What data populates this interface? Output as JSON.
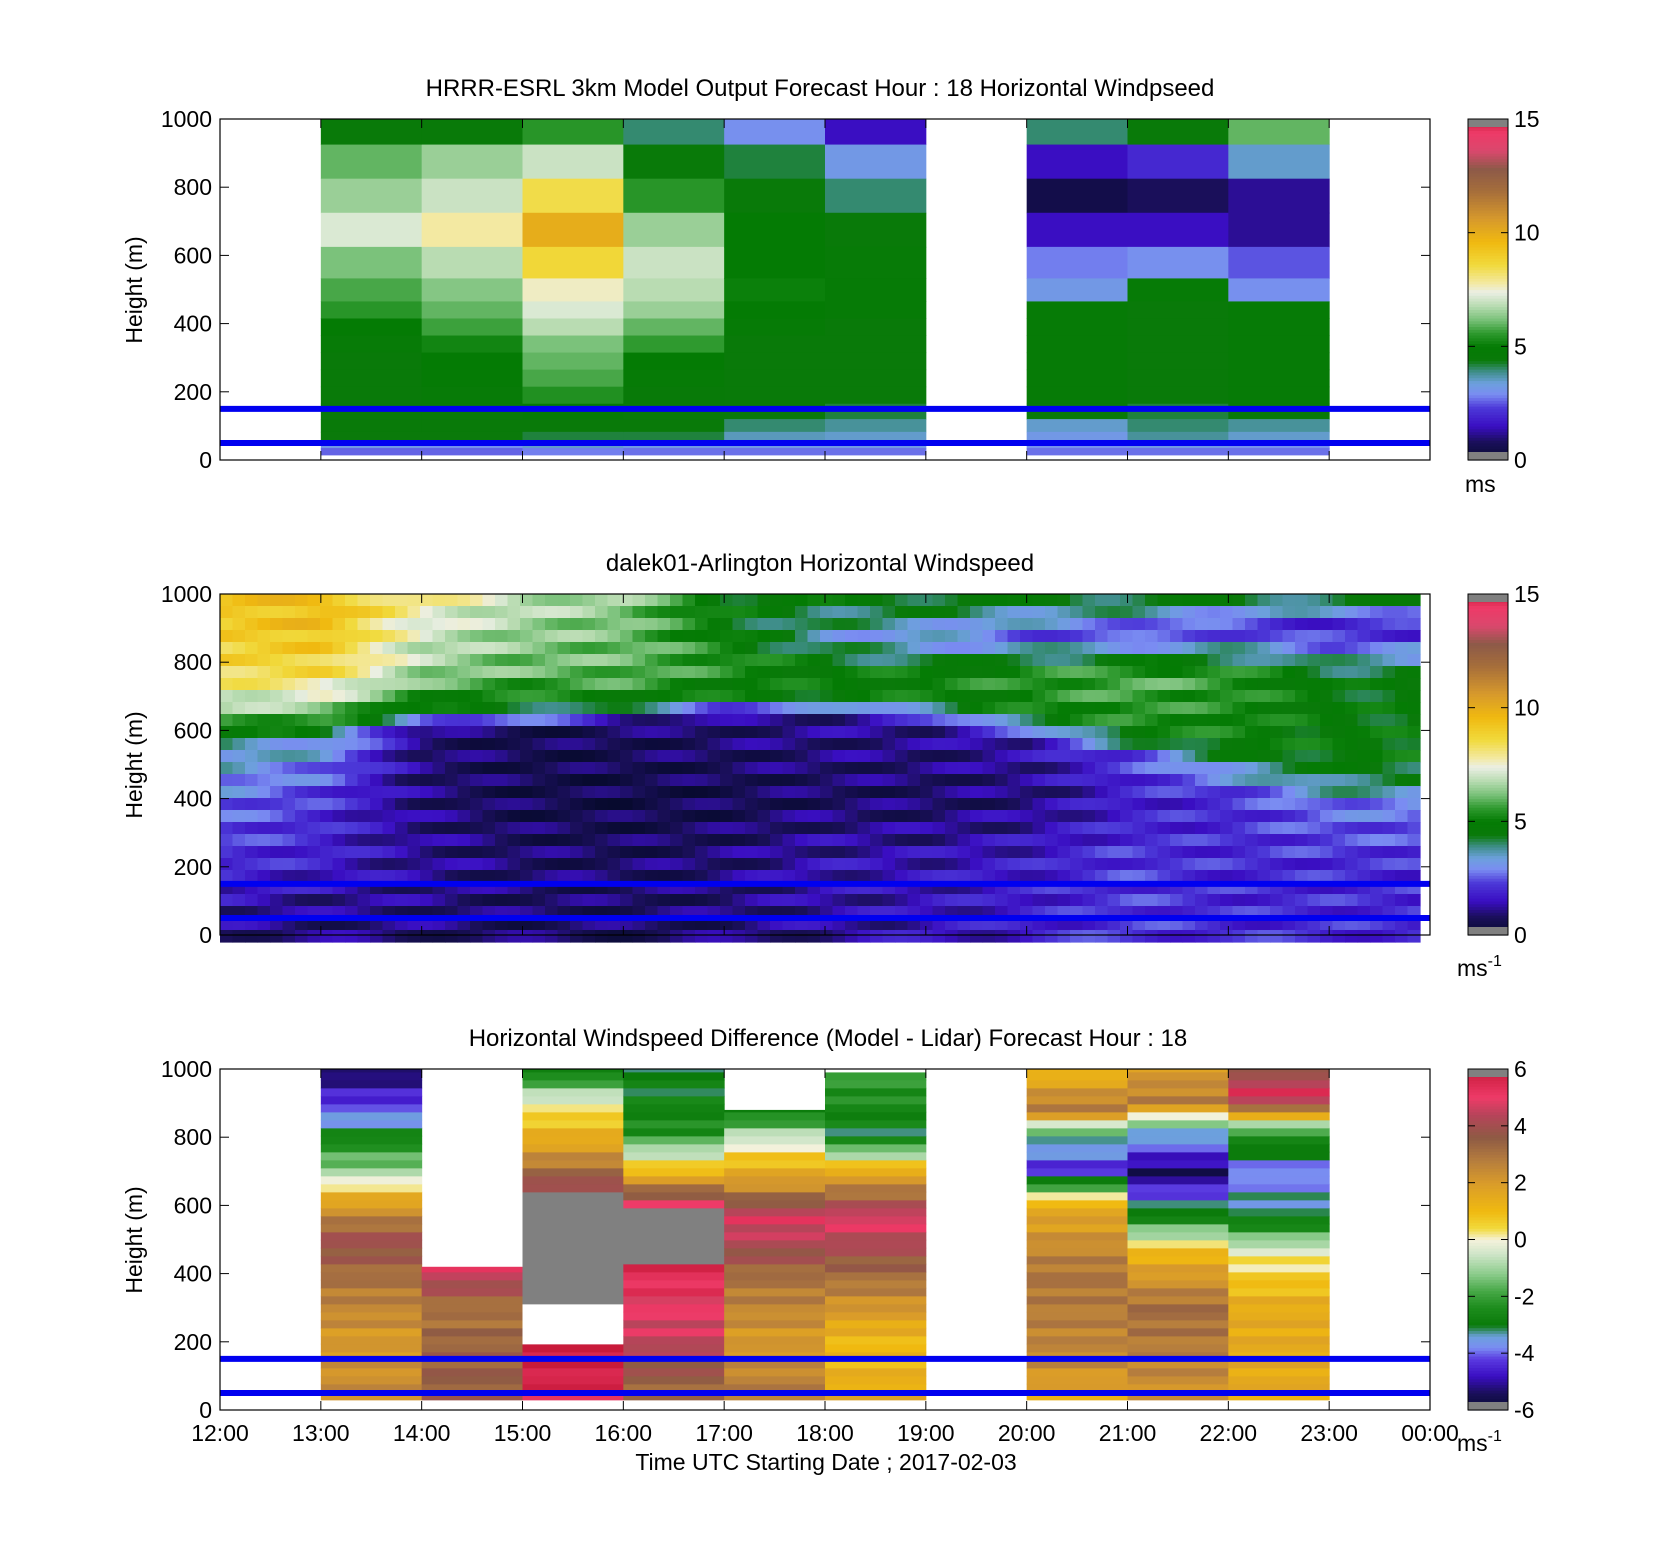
{
  "panels": [
    {
      "title": "HRRR-ESRL 3km Model Output   Forecast Hour : 18 Horizontal Windpseed",
      "ylabel": "Height (m)",
      "y_ticks": [
        "0",
        "200",
        "400",
        "600",
        "800",
        "1000"
      ],
      "colorbar": {
        "ticks": [
          "0",
          "5",
          "10",
          "15"
        ],
        "unit": "ms",
        "unit_sup": ""
      }
    },
    {
      "title": "dalek01-Arlington  Horizontal Windspeed",
      "ylabel": "Height (m)",
      "y_ticks": [
        "0",
        "200",
        "400",
        "600",
        "800",
        "1000"
      ],
      "colorbar": {
        "ticks": [
          "0",
          "5",
          "10",
          "15"
        ],
        "unit": "ms",
        "unit_sup": "-1"
      }
    },
    {
      "title": "Horizontal Windspeed Difference (Model - Lidar) Forecast Hour : 18",
      "ylabel": "Height (m)",
      "y_ticks": [
        "0",
        "200",
        "400",
        "600",
        "800",
        "1000"
      ],
      "x_ticks": [
        "12:00",
        "13:00",
        "14:00",
        "15:00",
        "16:00",
        "17:00",
        "18:00",
        "19:00",
        "20:00",
        "21:00",
        "22:00",
        "23:00",
        "00:00"
      ],
      "xlabel": "Time UTC  Starting Date ; 2017-02-03",
      "colorbar": {
        "ticks": [
          "-6",
          "-4",
          "-2",
          "0",
          "2",
          "4",
          "6"
        ],
        "unit": "ms",
        "unit_sup": "-1"
      }
    }
  ],
  "chart_data": [
    {
      "type": "heatmap",
      "title": "HRRR-ESRL 3km Model Output   Forecast Hour : 18 Horizontal Windpseed",
      "ylabel": "Height (m)",
      "ylim": [
        0,
        1000
      ],
      "clim": [
        0,
        15
      ],
      "colorbar_unit": "ms",
      "time_hours_utc": [
        13,
        14,
        15,
        16,
        17,
        18,
        20,
        21,
        22
      ],
      "heights_m": [
        975,
        875,
        775,
        675,
        575,
        490,
        440,
        390,
        340,
        290,
        240,
        190,
        140,
        100,
        65,
        45,
        25
      ],
      "windspeed": [
        [
          4.5,
          4.5,
          5.5,
          4.0,
          3.0,
          1.5,
          4.0,
          4.5,
          6.0
        ],
        [
          6.0,
          6.5,
          7.0,
          4.5,
          4.2,
          3.2,
          1.5,
          2.0,
          3.5
        ],
        [
          6.5,
          7.0,
          8.5,
          5.5,
          4.5,
          4.0,
          0.5,
          0.8,
          1.2
        ],
        [
          7.2,
          7.8,
          10.0,
          6.5,
          5.0,
          4.5,
          1.5,
          1.5,
          1.2
        ],
        [
          6.2,
          6.8,
          8.7,
          7.0,
          5.0,
          4.7,
          2.8,
          3.0,
          2.5
        ],
        [
          5.8,
          6.3,
          7.6,
          6.8,
          5.1,
          4.8,
          3.2,
          4.8,
          3.0
        ],
        [
          5.5,
          6.0,
          7.2,
          6.5,
          5.0,
          4.8,
          4.8,
          4.5,
          4.8
        ],
        [
          5.0,
          5.7,
          6.8,
          6.0,
          4.8,
          4.5,
          4.8,
          4.5,
          4.8
        ],
        [
          4.7,
          5.2,
          6.2,
          5.6,
          4.5,
          4.5,
          4.8,
          4.5,
          4.8
        ],
        [
          4.5,
          5.0,
          6.0,
          5.0,
          4.5,
          4.5,
          4.8,
          4.5,
          4.8
        ],
        [
          4.5,
          4.9,
          5.8,
          4.8,
          4.5,
          4.5,
          4.8,
          4.5,
          4.8
        ],
        [
          4.5,
          4.7,
          5.4,
          4.6,
          4.5,
          4.5,
          4.8,
          4.5,
          4.8
        ],
        [
          4.5,
          4.5,
          4.8,
          4.5,
          4.4,
          4.2,
          4.5,
          4.2,
          4.6
        ],
        [
          4.5,
          4.5,
          4.5,
          4.5,
          4.0,
          3.8,
          3.5,
          4.0,
          3.8
        ],
        [
          4.4,
          4.4,
          4.2,
          4.2,
          3.6,
          3.5,
          3.2,
          3.8,
          3.5
        ],
        [
          3.2,
          3.0,
          3.5,
          3.2,
          3.2,
          3.2,
          3.0,
          3.2,
          3.0
        ],
        [
          2.6,
          2.6,
          2.8,
          2.7,
          2.7,
          2.7,
          2.7,
          2.7,
          2.7
        ]
      ],
      "reference_lines_height_m": [
        150,
        50
      ]
    },
    {
      "type": "heatmap",
      "title": "dalek01-Arlington  Horizontal Windspeed",
      "ylabel": "Height (m)",
      "ylim": [
        0,
        1000
      ],
      "clim": [
        0,
        15
      ],
      "colorbar_unit": "ms-1",
      "time_range_utc": [
        "12:00",
        "23:55"
      ],
      "profile_summary": [
        {
          "time_utc": "12:00",
          "speed_by_height": [
            [
              50,
              1.2
            ],
            [
              200,
              2.0
            ],
            [
              400,
              2.8
            ],
            [
              560,
              3.8
            ],
            [
              640,
              6.0
            ],
            [
              760,
              8.5
            ],
            [
              900,
              9.0
            ],
            [
              1000,
              9.2
            ]
          ]
        },
        {
          "time_utc": "13:00",
          "speed_by_height": [
            [
              50,
              1.0
            ],
            [
              200,
              1.8
            ],
            [
              400,
              2.2
            ],
            [
              560,
              3.4
            ],
            [
              640,
              6.0
            ],
            [
              760,
              8.5
            ],
            [
              900,
              9.5
            ],
            [
              1000,
              9.5
            ]
          ]
        },
        {
          "time_utc": "14:00",
          "speed_by_height": [
            [
              50,
              1.0
            ],
            [
              200,
              1.2
            ],
            [
              400,
              1.0
            ],
            [
              600,
              1.0
            ],
            [
              660,
              4.5
            ],
            [
              760,
              6.5
            ],
            [
              900,
              7.2
            ],
            [
              1000,
              8.0
            ]
          ]
        },
        {
          "time_utc": "15:00",
          "speed_by_height": [
            [
              50,
              0.8
            ],
            [
              200,
              0.9
            ],
            [
              400,
              0.6
            ],
            [
              600,
              0.6
            ],
            [
              660,
              4.5
            ],
            [
              760,
              6.0
            ],
            [
              900,
              6.5
            ],
            [
              1000,
              7.0
            ]
          ]
        },
        {
          "time_utc": "16:00",
          "speed_by_height": [
            [
              50,
              0.8
            ],
            [
              200,
              0.8
            ],
            [
              400,
              0.5
            ],
            [
              620,
              0.8
            ],
            [
              680,
              4.8
            ],
            [
              760,
              6.0
            ],
            [
              900,
              6.2
            ],
            [
              1000,
              6.5
            ]
          ]
        },
        {
          "time_utc": "17:00",
          "speed_by_height": [
            [
              50,
              0.9
            ],
            [
              200,
              1.0
            ],
            [
              400,
              0.6
            ],
            [
              640,
              1.0
            ],
            [
              700,
              4.8
            ],
            [
              800,
              5.5
            ],
            [
              900,
              4.8
            ],
            [
              1000,
              4.8
            ]
          ]
        },
        {
          "time_utc": "18:00",
          "speed_by_height": [
            [
              50,
              1.3
            ],
            [
              200,
              1.5
            ],
            [
              400,
              0.8
            ],
            [
              640,
              1.2
            ],
            [
              700,
              4.8
            ],
            [
              780,
              4.8
            ],
            [
              880,
              3.5
            ],
            [
              1000,
              4.8
            ]
          ]
        },
        {
          "time_utc": "19:00",
          "speed_by_height": [
            [
              50,
              1.5
            ],
            [
              200,
              1.5
            ],
            [
              400,
              0.8
            ],
            [
              620,
              1.2
            ],
            [
              680,
              4.8
            ],
            [
              760,
              5.2
            ],
            [
              860,
              3.0
            ],
            [
              1000,
              4.8
            ]
          ]
        },
        {
          "time_utc": "20:00",
          "speed_by_height": [
            [
              50,
              1.8
            ],
            [
              200,
              1.8
            ],
            [
              400,
              1.0
            ],
            [
              580,
              1.5
            ],
            [
              640,
              5.0
            ],
            [
              760,
              5.5
            ],
            [
              880,
              2.5
            ],
            [
              1000,
              4.8
            ]
          ]
        },
        {
          "time_utc": "21:00",
          "speed_by_height": [
            [
              50,
              2.2
            ],
            [
              200,
              2.2
            ],
            [
              400,
              1.8
            ],
            [
              520,
              2.2
            ],
            [
              600,
              5.2
            ],
            [
              760,
              6.0
            ],
            [
              880,
              2.2
            ],
            [
              1000,
              4.8
            ]
          ]
        },
        {
          "time_utc": "22:00",
          "speed_by_height": [
            [
              50,
              2.0
            ],
            [
              200,
              2.0
            ],
            [
              400,
              2.0
            ],
            [
              460,
              3.0
            ],
            [
              560,
              5.0
            ],
            [
              760,
              5.6
            ],
            [
              900,
              2.0
            ],
            [
              1000,
              4.8
            ]
          ]
        },
        {
          "time_utc": "23:00",
          "speed_by_height": [
            [
              50,
              2.0
            ],
            [
              200,
              2.0
            ],
            [
              380,
              2.8
            ],
            [
              440,
              4.0
            ],
            [
              520,
              4.8
            ],
            [
              760,
              4.6
            ],
            [
              900,
              1.6
            ],
            [
              1000,
              4.8
            ]
          ]
        }
      ],
      "reference_lines_height_m": [
        150,
        50
      ]
    },
    {
      "type": "heatmap",
      "title": "Horizontal Windspeed Difference (Model - Lidar) Forecast Hour : 18",
      "xlabel": "Time UTC  Starting Date ; 2017-02-03",
      "ylabel": "Height (m)",
      "ylim": [
        0,
        1000
      ],
      "clim": [
        -6,
        6
      ],
      "colorbar_unit": "ms-1",
      "x_ticks": [
        "12:00",
        "13:00",
        "14:00",
        "15:00",
        "16:00",
        "17:00",
        "18:00",
        "19:00",
        "20:00",
        "21:00",
        "22:00",
        "23:00",
        "00:00"
      ],
      "time_hours_utc": [
        13,
        14,
        15,
        16,
        17,
        18,
        20,
        21,
        22
      ],
      "difference_by_height": [
        [
          [
            1000,
            -5.5
          ],
          [
            880,
            -4.0
          ],
          [
            820,
            -3.0
          ],
          [
            700,
            -1.0
          ],
          [
            620,
            1.5
          ],
          [
            500,
            4.0
          ],
          [
            380,
            3.0
          ],
          [
            200,
            2.0
          ],
          [
            30,
            2.5
          ]
        ],
        [
          [
            420,
            5.0
          ],
          [
            300,
            3.0
          ],
          [
            150,
            3.5
          ],
          [
            30,
            3.5
          ]
        ],
        [
          [
            1000,
            -3.0
          ],
          [
            900,
            0.0
          ],
          [
            760,
            2.0
          ],
          [
            640,
            4.5
          ],
          [
            600,
            "below-range"
          ],
          [
            300,
            6.0
          ],
          [
            250,
            "missing"
          ],
          [
            200,
            6.0
          ],
          [
            30,
            5.5
          ]
        ],
        [
          [
            1000,
            -3.0
          ],
          [
            820,
            -2.5
          ],
          [
            700,
            1.0
          ],
          [
            600,
            5.0
          ],
          [
            550,
            "below-range"
          ],
          [
            420,
            5.5
          ],
          [
            200,
            4.5
          ],
          [
            30,
            3.0
          ]
        ],
        [
          [
            880,
            -3.0
          ],
          [
            800,
            -0.5
          ],
          [
            650,
            2.5
          ],
          [
            560,
            5.0
          ],
          [
            380,
            3.0
          ],
          [
            200,
            2.0
          ],
          [
            30,
            3.0
          ]
        ],
        [
          [
            990,
            -2.0
          ],
          [
            800,
            -3.0
          ],
          [
            700,
            1.5
          ],
          [
            560,
            5.0
          ],
          [
            380,
            3.0
          ],
          [
            200,
            1.0
          ],
          [
            30,
            1.5
          ]
        ],
        [
          [
            1000,
            1.0
          ],
          [
            880,
            3.0
          ],
          [
            800,
            -3.0
          ],
          [
            700,
            -4.5
          ],
          [
            600,
            1.5
          ],
          [
            400,
            3.0
          ],
          [
            150,
            2.5
          ],
          [
            30,
            1.5
          ]
        ],
        [
          [
            1000,
            2.0
          ],
          [
            900,
            2.8
          ],
          [
            820,
            -3.0
          ],
          [
            700,
            -5.5
          ],
          [
            560,
            -2.5
          ],
          [
            460,
            1.2
          ],
          [
            300,
            3.2
          ],
          [
            100,
            2.5
          ],
          [
            30,
            2.0
          ]
        ],
        [
          [
            1000,
            3.5
          ],
          [
            920,
            5.5
          ],
          [
            820,
            -2.0
          ],
          [
            700,
            -4.0
          ],
          [
            560,
            -3.0
          ],
          [
            460,
            0.0
          ],
          [
            300,
            1.5
          ],
          [
            100,
            1.5
          ],
          [
            30,
            1.5
          ]
        ]
      ],
      "reference_lines_height_m": [
        150,
        50
      ]
    }
  ]
}
